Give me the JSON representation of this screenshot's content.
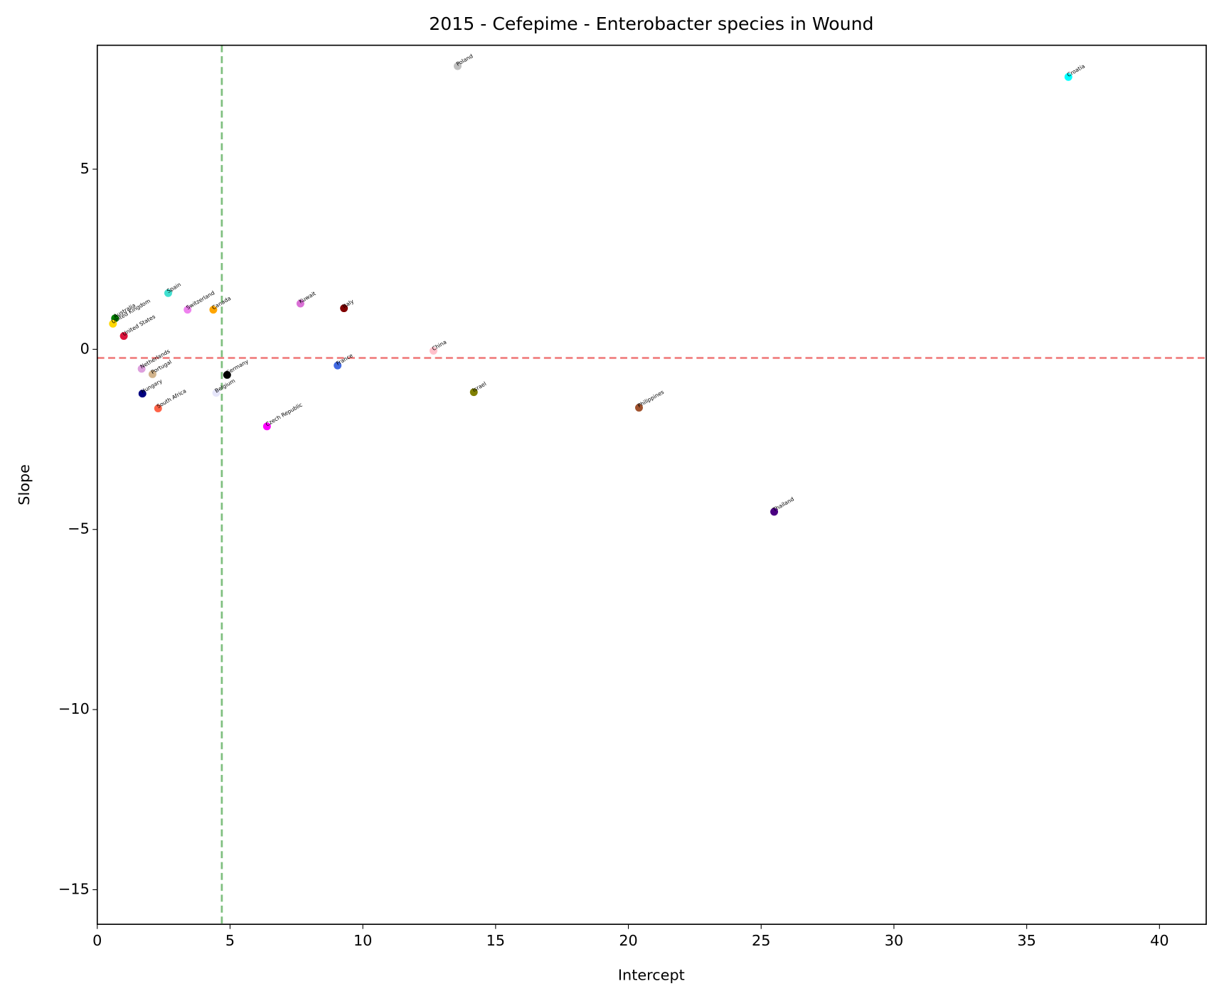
{
  "chart_data": {
    "type": "scatter",
    "title": "2015 - Cefepime - Enterobacter species in Wound",
    "xlabel": "Intercept",
    "ylabel": "Slope",
    "labels": [
      "Poland",
      "Croatia",
      "Spain",
      "Australia",
      "United Kingdom",
      "United States",
      "Switzerland",
      "Canada",
      "Kuwait",
      "Italy",
      "China",
      "Netherlands",
      "Portugal",
      "Germany",
      "France",
      "Hungary",
      "Belgium",
      "South Africa",
      "Israel",
      "Philippines",
      "Czech Republic",
      "Thailand"
    ],
    "x": [
      13.57,
      36.57,
      2.67,
      0.67,
      0.59,
      1.0,
      3.4,
      4.37,
      7.65,
      9.29,
      12.66,
      1.67,
      2.08,
      4.89,
      9.05,
      1.7,
      4.48,
      2.29,
      14.18,
      20.4,
      6.39,
      25.49
    ],
    "values": [
      7.86,
      7.56,
      1.56,
      0.86,
      0.71,
      0.37,
      1.1,
      1.1,
      1.27,
      1.14,
      -0.04,
      -0.54,
      -0.69,
      -0.71,
      -0.45,
      -1.23,
      -1.21,
      -1.64,
      -1.19,
      -1.62,
      -2.14,
      -4.51
    ],
    "colors": [
      "#c0c0c0",
      "#00ffff",
      "#40e0d0",
      "#008000",
      "#ffd700",
      "#dc143c",
      "#ee82ee",
      "#ffa500",
      "#da70d6",
      "#800000",
      "#ffc0cb",
      "#dda0dd",
      "#d2b48c",
      "#000000",
      "#4169e1",
      "#000080",
      "#e6e6fa",
      "#ff6347",
      "#808000",
      "#a0522d",
      "#ff00ff",
      "#4b0082"
    ],
    "vline": {
      "value": 4.69,
      "color": "#7fbf7f"
    },
    "hline": {
      "value": -0.24,
      "color": "#f08080"
    },
    "xlim": [
      0,
      41.76
    ],
    "ylim": [
      -15.96,
      8.44
    ],
    "xticks": [
      0,
      5,
      10,
      15,
      20,
      25,
      30,
      35,
      40
    ],
    "yticks": [
      {
        "value": -15,
        "label": "−15"
      },
      {
        "value": -10,
        "label": "−10"
      },
      {
        "value": -5,
        "label": "−5"
      },
      0,
      5
    ]
  }
}
